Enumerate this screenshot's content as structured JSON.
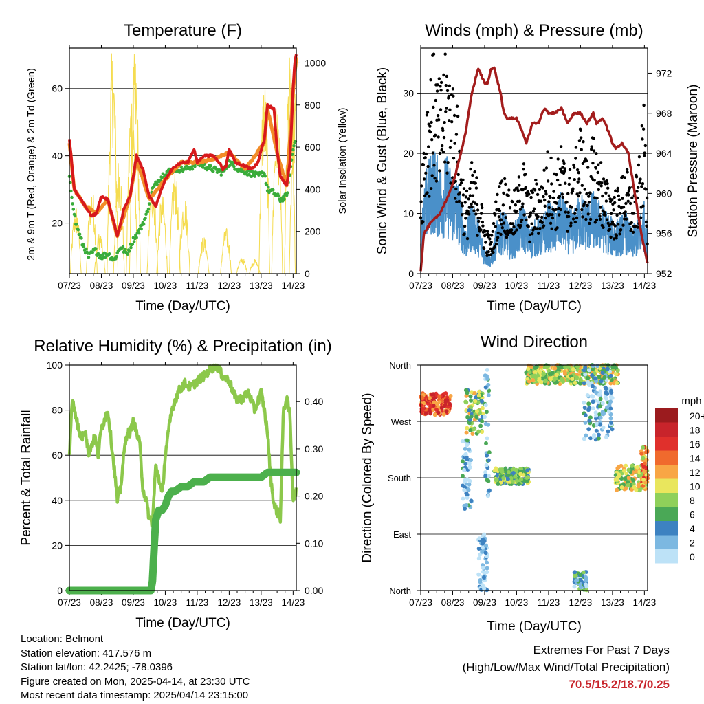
{
  "shared": {
    "x_ticks": [
      "07/23",
      "08/23",
      "09/23",
      "10/23",
      "11/23",
      "12/23",
      "13/23",
      "14/23"
    ],
    "x_label": "Time (Day/UTC)"
  },
  "chart_data": [
    {
      "id": "temperature",
      "type": "line",
      "title": "Temperature (F)",
      "xlabel": "Time (Day/UTC)",
      "ylabel": "2m & 9m T (Red, Orange) & 2m Td (Green)",
      "y2label": "Solar Insolation (Yellow)",
      "ylim": [
        5,
        72
      ],
      "yticks": [
        20,
        40,
        60
      ],
      "y2lim": [
        0,
        1070
      ],
      "y2ticks": [
        0,
        200,
        400,
        600,
        800,
        1000
      ],
      "grid": true,
      "series": [
        {
          "name": "2m T",
          "color": "#d7191c",
          "x": [
            0,
            0.05,
            0.15,
            0.3,
            0.5,
            0.7,
            0.85,
            1.0,
            1.2,
            1.4,
            1.5,
            1.7,
            1.9,
            2.1,
            2.3,
            2.5,
            2.7,
            3.0,
            3.3,
            3.5,
            3.7,
            3.9,
            4.0,
            4.2,
            4.5,
            4.7,
            4.8,
            4.9,
            5.0,
            5.2,
            5.5,
            5.7,
            5.9,
            6.1,
            6.2,
            6.4,
            6.5,
            6.6,
            6.8,
            6.9,
            7.0,
            7.05,
            7.1
          ],
          "y": [
            45,
            40,
            30,
            28,
            25,
            22,
            23,
            28,
            27,
            20,
            16,
            24,
            28,
            40,
            36,
            28,
            25,
            33,
            37,
            38,
            38,
            42,
            38,
            40,
            40,
            38,
            36,
            37,
            42,
            38,
            37,
            36,
            38,
            45,
            55,
            54,
            42,
            34,
            31,
            38,
            60,
            68,
            70
          ]
        },
        {
          "name": "9m T",
          "color": "#f28c28",
          "x": [
            0,
            0.15,
            0.5,
            0.85,
            1.2,
            1.5,
            1.9,
            2.1,
            2.5,
            3.0,
            3.5,
            4.0,
            4.5,
            5.0,
            5.5,
            6.1,
            6.2,
            6.5,
            6.8,
            7.0,
            7.1
          ],
          "y": [
            44,
            30,
            25,
            23,
            27,
            16,
            28,
            39,
            27,
            33,
            38,
            38,
            39,
            41,
            36,
            44,
            54,
            41,
            31,
            59,
            69
          ]
        },
        {
          "name": "2m Td",
          "color": "#3aac3a",
          "x": [
            0,
            0.2,
            0.4,
            0.6,
            0.8,
            1.0,
            1.2,
            1.4,
            1.6,
            1.8,
            2.0,
            2.2,
            2.4,
            2.6,
            2.8,
            3.0,
            3.3,
            3.6,
            3.9,
            4.0,
            4.2,
            4.5,
            4.8,
            5.0,
            5.3,
            5.6,
            5.9,
            6.1,
            6.2,
            6.4,
            6.6,
            6.8,
            6.9,
            7.0,
            7.1
          ],
          "y": [
            33,
            20,
            14,
            10,
            12,
            10,
            11,
            9,
            13,
            11,
            15,
            18,
            22,
            30,
            33,
            35,
            36,
            36,
            37,
            38,
            37,
            36,
            35,
            38,
            36,
            35,
            34,
            35,
            30,
            29,
            27,
            28,
            35,
            42,
            46
          ]
        },
        {
          "name": "Solar Insolation",
          "color": "#f5dc50",
          "axis": "y2",
          "peaks": [
            [
              0.2,
              330
            ],
            [
              0.7,
              420
            ],
            [
              0.95,
              200
            ],
            [
              1.35,
              1080
            ],
            [
              1.55,
              560
            ],
            [
              1.95,
              900
            ],
            [
              2.05,
              1060
            ],
            [
              2.6,
              450
            ],
            [
              2.9,
              380
            ],
            [
              3.3,
              500
            ],
            [
              3.6,
              380
            ],
            [
              4.2,
              180
            ],
            [
              4.9,
              220
            ],
            [
              5.4,
              80
            ],
            [
              5.8,
              70
            ],
            [
              6.1,
              950
            ],
            [
              6.5,
              830
            ],
            [
              6.9,
              1050
            ],
            [
              7.05,
              880
            ]
          ]
        }
      ]
    },
    {
      "id": "winds",
      "type": "scatter",
      "title": "Winds (mph) & Pressure (mb)",
      "xlabel": "Time (Day/UTC)",
      "ylabel": "Sonic Wind & Gust (Blue, Black)",
      "y2label": "Station Pressure (Maroon)",
      "ylim": [
        0,
        37.5
      ],
      "yticks": [
        0,
        10,
        20,
        30
      ],
      "y2lim": [
        952,
        974.5
      ],
      "y2ticks": [
        952,
        956,
        960,
        964,
        968,
        972
      ],
      "grid": true,
      "series": [
        {
          "name": "Sonic Wind",
          "color": "#4a90c9",
          "x": [
            0,
            0.2,
            0.4,
            0.6,
            0.8,
            1.0,
            1.2,
            1.4,
            1.6,
            1.8,
            2.0,
            2.2,
            2.4,
            2.6,
            2.8,
            3.0,
            3.2,
            3.4,
            3.6,
            3.8,
            4.0,
            4.2,
            4.4,
            4.6,
            4.8,
            5.0,
            5.2,
            5.4,
            5.6,
            5.8,
            6.0,
            6.2,
            6.4,
            6.6,
            6.8,
            7.0,
            7.1
          ],
          "y": [
            6,
            12,
            14,
            12,
            13,
            11,
            10,
            5,
            8,
            6,
            3,
            2,
            6,
            7,
            5,
            6,
            8,
            5,
            6,
            6,
            8,
            7,
            9,
            7,
            7,
            9,
            8,
            9,
            8,
            7,
            6,
            6,
            7,
            5,
            6,
            8,
            4
          ]
        },
        {
          "name": "Gust",
          "color": "#000000",
          "x": [
            0,
            0.2,
            0.4,
            0.6,
            0.8,
            1.0,
            1.2,
            1.4,
            1.6,
            1.8,
            2.0,
            2.2,
            2.4,
            2.6,
            2.8,
            3.0,
            3.2,
            3.4,
            3.6,
            3.8,
            4.0,
            4.2,
            4.4,
            4.6,
            4.8,
            5.0,
            5.2,
            5.4,
            5.6,
            5.8,
            6.0,
            6.2,
            6.4,
            6.6,
            6.8,
            7.0,
            7.1
          ],
          "y": [
            12,
            22,
            26,
            22,
            27,
            23,
            18,
            9,
            13,
            11,
            6,
            4,
            10,
            12,
            9,
            10,
            14,
            9,
            11,
            11,
            15,
            12,
            15,
            12,
            13,
            18,
            13,
            16,
            14,
            11,
            10,
            10,
            13,
            10,
            12,
            20,
            8
          ]
        },
        {
          "name": "Station Pressure",
          "color": "#a31c1c",
          "axis": "y2",
          "x": [
            0,
            0.1,
            0.3,
            0.6,
            0.9,
            1.1,
            1.4,
            1.6,
            1.8,
            2.0,
            2.1,
            2.2,
            2.3,
            2.5,
            2.6,
            2.7,
            2.8,
            3.0,
            3.2,
            3.3,
            3.5,
            3.7,
            3.8,
            3.9,
            4.0,
            4.2,
            4.4,
            4.6,
            4.8,
            5.0,
            5.2,
            5.4,
            5.5,
            5.7,
            5.9,
            6.0,
            6.1,
            6.3,
            6.5,
            6.7,
            6.9,
            7.1
          ],
          "y": [
            952.3,
            956,
            957,
            958,
            960,
            962,
            966,
            970,
            972.5,
            971,
            971,
            972.5,
            972.5,
            970,
            968,
            967.5,
            967.5,
            967.5,
            966,
            965,
            967,
            967,
            968,
            968.5,
            968,
            968,
            968.5,
            967,
            968,
            968,
            967,
            968,
            967,
            967.5,
            966,
            965,
            964.5,
            965,
            964,
            960,
            956,
            953
          ]
        }
      ]
    },
    {
      "id": "humidity",
      "type": "line",
      "title": "Relative Humidity (%) & Precipitation (in)",
      "xlabel": "Time (Day/UTC)",
      "ylabel": "Percent & Total Rainfall",
      "ylim": [
        0,
        100
      ],
      "yticks": [
        0,
        20,
        40,
        60,
        80,
        100
      ],
      "y2lim": [
        0,
        0.4775
      ],
      "y2ticks": [
        "0.00",
        "0.10",
        "0.20",
        "0.30",
        "0.40"
      ],
      "grid": true,
      "series": [
        {
          "name": "Relative Humidity",
          "color": "#8cc84b",
          "x": [
            0,
            0.05,
            0.1,
            0.2,
            0.3,
            0.4,
            0.5,
            0.6,
            0.7,
            0.8,
            0.9,
            1.0,
            1.2,
            1.4,
            1.5,
            1.6,
            1.7,
            1.8,
            1.9,
            2.0,
            2.1,
            2.2,
            2.3,
            2.4,
            2.5,
            2.6,
            2.7,
            2.8,
            2.9,
            3.0,
            3.2,
            3.4,
            3.6,
            3.8,
            4.0,
            4.2,
            4.4,
            4.6,
            4.8,
            5.0,
            5.2,
            5.4,
            5.6,
            5.8,
            6.0,
            6.1,
            6.2,
            6.3,
            6.4,
            6.6,
            6.7,
            6.8,
            6.9,
            7.0,
            7.1
          ],
          "y": [
            60,
            75,
            85,
            78,
            70,
            68,
            72,
            60,
            65,
            68,
            60,
            72,
            80,
            55,
            40,
            45,
            60,
            70,
            70,
            75,
            70,
            65,
            45,
            40,
            32,
            30,
            55,
            50,
            42,
            60,
            80,
            88,
            92,
            90,
            93,
            95,
            98,
            100,
            95,
            93,
            85,
            85,
            88,
            80,
            88,
            80,
            70,
            50,
            38,
            32,
            80,
            85,
            78,
            40,
            45
          ]
        },
        {
          "name": "Total Precipitation",
          "color": "#4cb04c",
          "axis": "y2",
          "x": [
            0,
            2.55,
            2.6,
            2.65,
            2.7,
            2.8,
            2.9,
            3.0,
            3.1,
            3.2,
            3.3,
            3.5,
            3.7,
            3.9,
            4.0,
            4.2,
            4.4,
            4.6,
            4.8,
            5.0,
            5.5,
            6.0,
            6.2,
            6.5,
            7.0,
            7.1
          ],
          "y": [
            0,
            0,
            0.02,
            0.09,
            0.15,
            0.17,
            0.17,
            0.18,
            0.2,
            0.21,
            0.21,
            0.22,
            0.22,
            0.23,
            0.23,
            0.23,
            0.24,
            0.24,
            0.24,
            0.24,
            0.24,
            0.24,
            0.25,
            0.25,
            0.25,
            0.25
          ]
        }
      ]
    },
    {
      "id": "wind_direction",
      "type": "scatter",
      "title": "Wind Direction",
      "xlabel": "Time (Day/UTC)",
      "ylabel": "Direction (Colored By Speed)",
      "ylim": [
        0,
        360
      ],
      "y_tick_labels": [
        "North",
        "East",
        "South",
        "West",
        "North"
      ],
      "y_tick_values": [
        0,
        90,
        180,
        270,
        360
      ],
      "grid": true,
      "legend": {
        "title": "mph",
        "labels": [
          "20+",
          "18",
          "16",
          "14",
          "12",
          "10",
          "8",
          "6",
          "4",
          "2",
          "0"
        ],
        "colors": [
          "#9b1b1e",
          "#c8242b",
          "#e0302c",
          "#f06a2d",
          "#f8a645",
          "#e9e65d",
          "#8fd05a",
          "#4aa856",
          "#3d82c1",
          "#7cb8e1",
          "#bde2f7"
        ]
      },
      "clusters": [
        {
          "x0": 0.0,
          "x1": 0.95,
          "d0": 280,
          "d1": 315,
          "speed": 15
        },
        {
          "x0": 1.4,
          "x1": 1.95,
          "d0": 250,
          "d1": 320,
          "speed": 8
        },
        {
          "x0": 1.3,
          "x1": 1.6,
          "d0": 130,
          "d1": 240,
          "speed": 2
        },
        {
          "x0": 1.8,
          "x1": 2.1,
          "d0": 0,
          "d1": 90,
          "speed": 1
        },
        {
          "x0": 2.0,
          "x1": 2.15,
          "d0": 150,
          "d1": 355,
          "speed": 3
        },
        {
          "x0": 2.3,
          "x1": 3.4,
          "d0": 170,
          "d1": 195,
          "speed": 7
        },
        {
          "x0": 3.3,
          "x1": 6.2,
          "d0": 330,
          "d1": 360,
          "speed": 9
        },
        {
          "x0": 4.8,
          "x1": 5.2,
          "d0": 0,
          "d1": 30,
          "speed": 4
        },
        {
          "x0": 5.1,
          "x1": 6.0,
          "d0": 240,
          "d1": 360,
          "speed": 3
        },
        {
          "x0": 6.1,
          "x1": 7.1,
          "d0": 160,
          "d1": 200,
          "speed": 9
        },
        {
          "x0": 6.9,
          "x1": 7.1,
          "d0": 160,
          "d1": 230,
          "speed": 12
        }
      ]
    }
  ],
  "info": {
    "location": "Location: Belmont",
    "elevation": "Station elevation: 417.576 m",
    "latlon": "Station lat/lon: 42.2425; -78.0396",
    "created": "Figure created on Mon, 2025-04-14, at 23:30 UTC",
    "recent": "Most recent data timestamp: 2025/04/14 23:15:00"
  },
  "extremes": {
    "title": "Extremes For Past 7 Days",
    "subtitle": "(High/Low/Max Wind/Total Precipitation)",
    "values": "70.5/15.2/18.7/0.25"
  }
}
